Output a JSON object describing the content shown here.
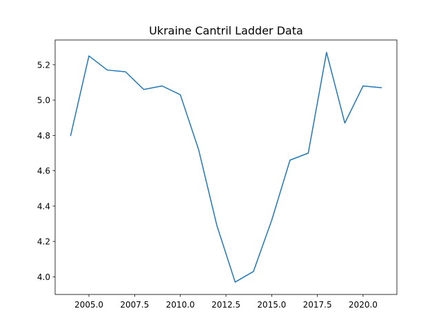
{
  "chart_data": {
    "type": "line",
    "title": "Ukraine Cantril Ladder Data",
    "xlabel": "",
    "ylabel": "",
    "xlim": [
      2003.15,
      2021.85
    ],
    "ylim": [
      3.9,
      5.34
    ],
    "xticks": [
      2005.0,
      2007.5,
      2010.0,
      2012.5,
      2015.0,
      2017.5,
      2020.0
    ],
    "xtick_labels": [
      "2005.0",
      "2007.5",
      "2010.0",
      "2012.5",
      "2015.0",
      "2017.5",
      "2020.0"
    ],
    "yticks": [
      4.0,
      4.2,
      4.4,
      4.6,
      4.8,
      5.0,
      5.2
    ],
    "ytick_labels": [
      "4.0",
      "4.2",
      "4.4",
      "4.6",
      "4.8",
      "5.0",
      "5.2"
    ],
    "grid": false,
    "series": [
      {
        "color": "#1f77b4",
        "x": [
          2004,
          2005,
          2006,
          2007,
          2008,
          2009,
          2010,
          2011,
          2012,
          2013,
          2014,
          2015,
          2016,
          2017,
          2018,
          2019,
          2020,
          2021
        ],
        "y": [
          4.8,
          5.25,
          5.17,
          5.16,
          5.06,
          5.08,
          5.03,
          4.72,
          4.29,
          3.97,
          4.03,
          4.32,
          4.66,
          4.7,
          5.27,
          4.87,
          5.08,
          5.07
        ]
      }
    ]
  }
}
